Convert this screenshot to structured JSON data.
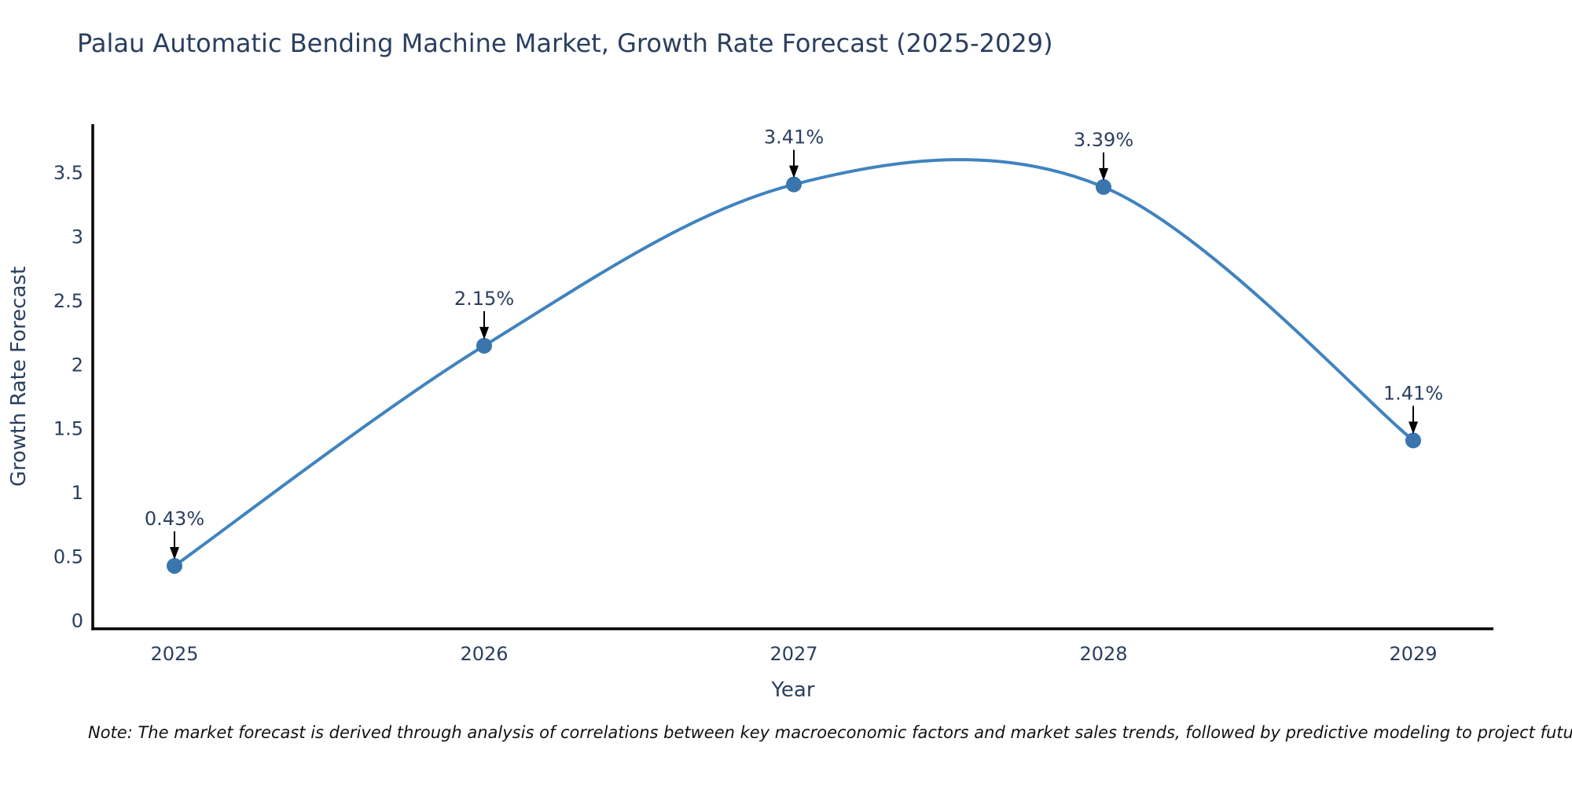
{
  "chart_data": {
    "type": "line",
    "title": "Palau Automatic Bending Machine Market, Growth Rate Forecast (2025-2029)",
    "xlabel": "Year",
    "ylabel": "Growth Rate Forecast",
    "x": [
      2025,
      2026,
      2027,
      2028,
      2029
    ],
    "values": [
      0.43,
      2.15,
      3.41,
      3.39,
      1.41
    ],
    "point_labels": [
      "0.43%",
      "2.15%",
      "3.41%",
      "3.39%",
      "1.41%"
    ],
    "yticks": [
      0,
      0.5,
      1,
      1.5,
      2,
      2.5,
      3,
      3.5
    ],
    "ylim": [
      -0.06,
      3.88
    ],
    "line_shape": "spline",
    "grid": false,
    "legend": "none",
    "colors": {
      "line": "#4083bf",
      "marker": "#3a76ad",
      "axis": "#000000",
      "text": "#2a3f5f",
      "annotation": "#2a3f5f",
      "arrow": "#000000",
      "background": "#ffffff"
    }
  },
  "note": {
    "text": "Note: The market forecast is derived through analysis of correlations between key macroeconomic factors and market sales trends, followed by predictive modeling to project future sales"
  }
}
